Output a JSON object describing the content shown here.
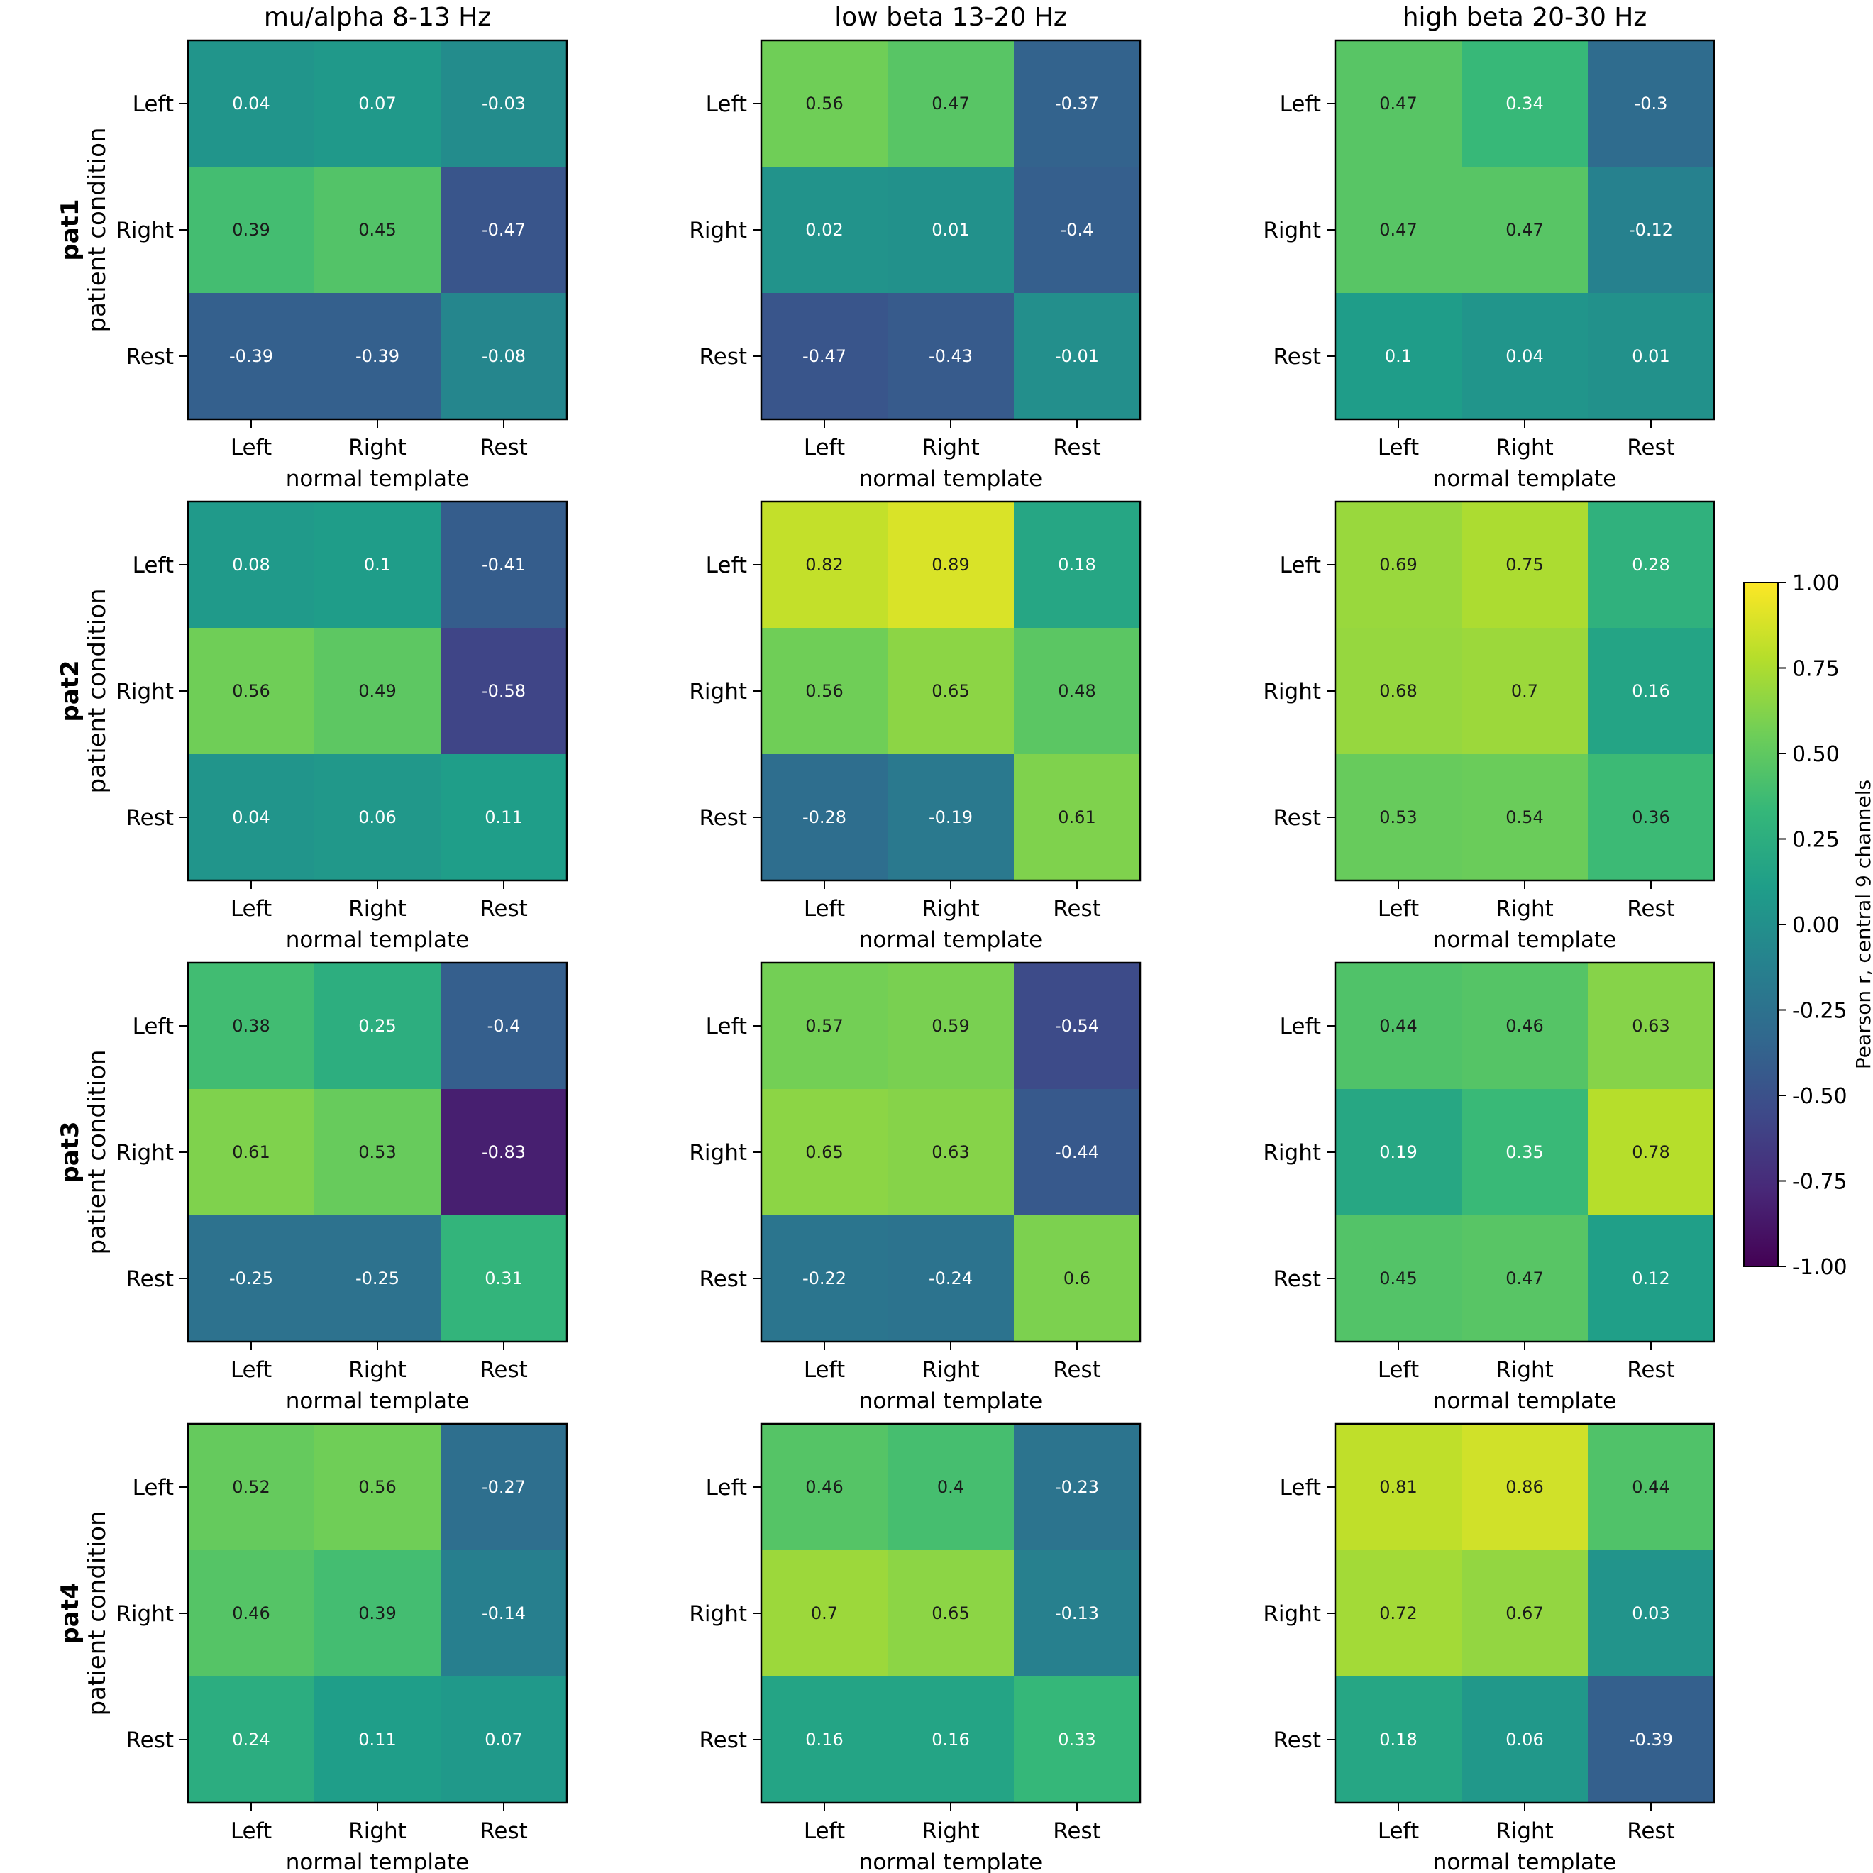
{
  "chart_data": {
    "type": "heatmap",
    "column_titles": [
      "mu/alpha 8-13 Hz",
      "low beta 13-20 Hz",
      "high beta 20-30 Hz"
    ],
    "rows": [
      {
        "name": "pat1",
        "ylabel": "patient condition"
      },
      {
        "name": "pat2",
        "ylabel": "patient condition"
      },
      {
        "name": "pat3",
        "ylabel": "patient condition"
      },
      {
        "name": "pat4",
        "ylabel": "patient condition"
      }
    ],
    "categories": [
      "Left",
      "Right",
      "Rest"
    ],
    "xlabel": "normal template",
    "colormap": "viridis",
    "vmin": -1.0,
    "vmax": 1.0,
    "colorbar": {
      "label": "Pearson r, central 9 channels",
      "ticks": [
        1.0,
        0.75,
        0.5,
        0.25,
        0.0,
        -0.25,
        -0.5,
        -0.75,
        -1.0
      ],
      "tick_labels": [
        "1.00",
        "0.75",
        "0.50",
        "0.25",
        "0.00",
        "-0.25",
        "-0.50",
        "-0.75",
        "-1.00"
      ],
      "placement": "right"
    },
    "matrices": [
      [
        [
          [
            0.04,
            0.07,
            -0.03
          ],
          [
            0.39,
            0.45,
            -0.47
          ],
          [
            -0.39,
            -0.39,
            -0.08
          ]
        ],
        [
          [
            0.56,
            0.47,
            -0.37
          ],
          [
            0.02,
            0.01,
            -0.4
          ],
          [
            -0.47,
            -0.43,
            -0.01
          ]
        ],
        [
          [
            0.47,
            0.34,
            -0.3
          ],
          [
            0.47,
            0.47,
            -0.12
          ],
          [
            0.1,
            0.04,
            0.01
          ]
        ]
      ],
      [
        [
          [
            0.08,
            0.1,
            -0.41
          ],
          [
            0.56,
            0.49,
            -0.58
          ],
          [
            0.04,
            0.06,
            0.11
          ]
        ],
        [
          [
            0.82,
            0.89,
            0.18
          ],
          [
            0.56,
            0.65,
            0.48
          ],
          [
            -0.28,
            -0.19,
            0.61
          ]
        ],
        [
          [
            0.69,
            0.75,
            0.28
          ],
          [
            0.68,
            0.7,
            0.16
          ],
          [
            0.53,
            0.54,
            0.36
          ]
        ]
      ],
      [
        [
          [
            0.38,
            0.25,
            -0.4
          ],
          [
            0.61,
            0.53,
            -0.83
          ],
          [
            -0.25,
            -0.25,
            0.31
          ]
        ],
        [
          [
            0.57,
            0.59,
            -0.54
          ],
          [
            0.65,
            0.63,
            -0.44
          ],
          [
            -0.22,
            -0.24,
            0.6
          ]
        ],
        [
          [
            0.44,
            0.46,
            0.63
          ],
          [
            0.19,
            0.35,
            0.78
          ],
          [
            0.45,
            0.47,
            0.12
          ]
        ]
      ],
      [
        [
          [
            0.52,
            0.56,
            -0.27
          ],
          [
            0.46,
            0.39,
            -0.14
          ],
          [
            0.24,
            0.11,
            0.07
          ]
        ],
        [
          [
            0.46,
            0.4,
            -0.23
          ],
          [
            0.7,
            0.65,
            -0.13
          ],
          [
            0.16,
            0.16,
            0.33
          ]
        ],
        [
          [
            0.81,
            0.86,
            0.44
          ],
          [
            0.72,
            0.67,
            0.03
          ],
          [
            0.18,
            0.06,
            -0.39
          ]
        ]
      ]
    ]
  }
}
